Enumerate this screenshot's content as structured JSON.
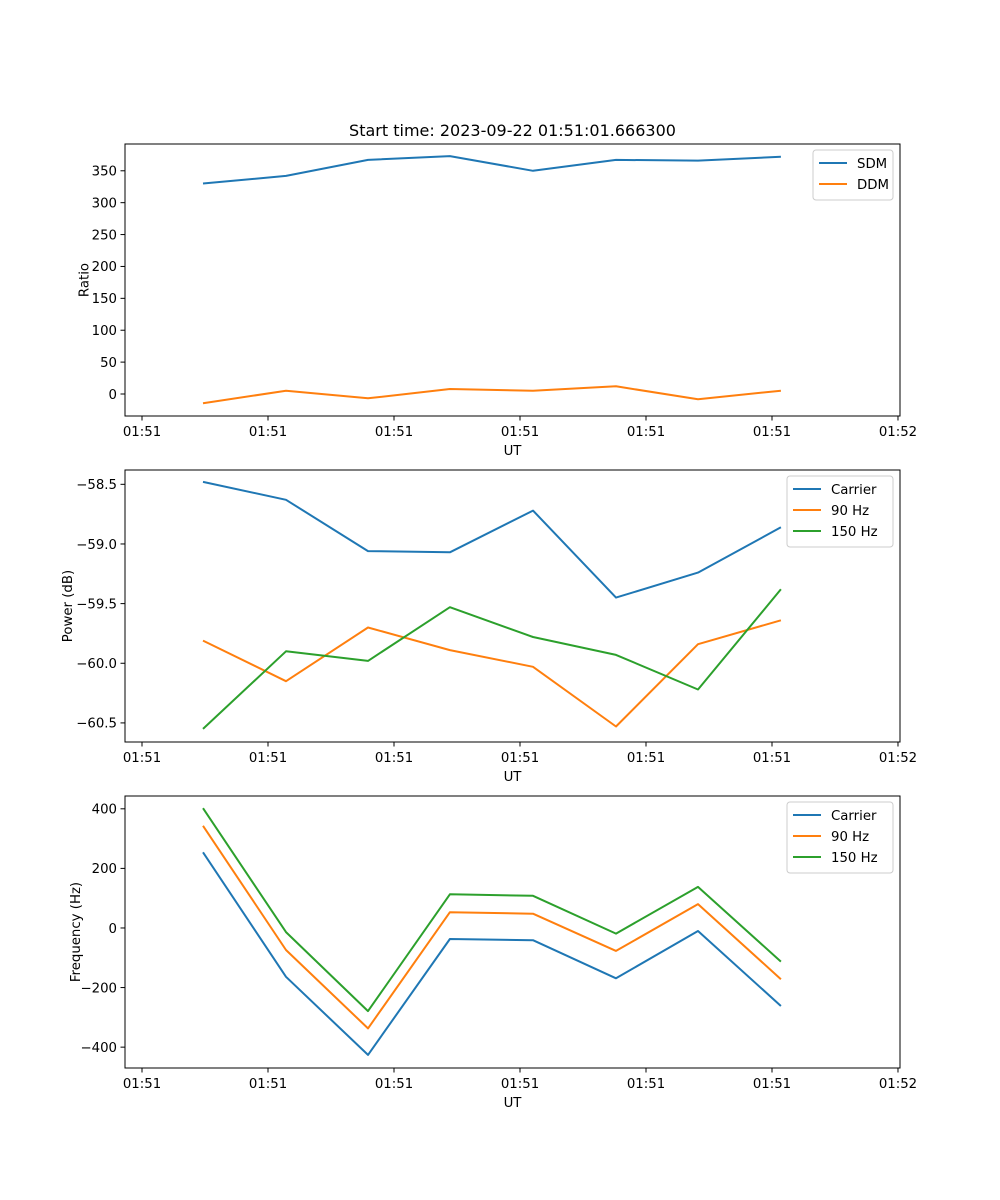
{
  "figure_title": "Start time: 2023-09-22 01:51:01.666300",
  "chart_data": [
    {
      "type": "line",
      "title": "Start time: 2023-09-22 01:51:01.666300",
      "xlabel": "UT",
      "ylabel": "Ratio",
      "x": [
        0.484,
        1.143,
        1.794,
        2.444,
        3.103,
        3.762,
        4.413,
        5.071
      ],
      "xlim": [
        -0.135,
        6.016
      ],
      "xticks": [
        0,
        1,
        2,
        3,
        4,
        5,
        6
      ],
      "xtick_labels": [
        "01:51",
        "01:51",
        "01:51",
        "01:51",
        "01:51",
        "01:51",
        "01:52"
      ],
      "ylim": [
        -34.5,
        392
      ],
      "yticks": [
        0,
        50,
        100,
        150,
        200,
        250,
        300,
        350
      ],
      "ytick_labels": [
        "0",
        "50",
        "100",
        "150",
        "200",
        "250",
        "300",
        "350"
      ],
      "legend_position": "upper right",
      "grid": false,
      "series": [
        {
          "name": "SDM",
          "color": "#1f77b4",
          "values": [
            330,
            342,
            367,
            373,
            350,
            367,
            366,
            372
          ]
        },
        {
          "name": "DDM",
          "color": "#ff7f0e",
          "values": [
            -14.6,
            5.2,
            -6.8,
            7.8,
            5.2,
            12,
            -8.3,
            5.2
          ]
        }
      ]
    },
    {
      "type": "line",
      "title": "",
      "xlabel": "UT",
      "ylabel": "Power (dB)",
      "x": [
        0.484,
        1.143,
        1.794,
        2.444,
        3.103,
        3.762,
        4.413,
        5.071
      ],
      "xlim": [
        -0.135,
        6.016
      ],
      "xticks": [
        0,
        1,
        2,
        3,
        4,
        5,
        6
      ],
      "xtick_labels": [
        "01:51",
        "01:51",
        "01:51",
        "01:51",
        "01:51",
        "01:51",
        "01:52"
      ],
      "ylim": [
        -60.66,
        -58.38
      ],
      "yticks": [
        -60.5,
        -60.0,
        -59.5,
        -59.0,
        -58.5
      ],
      "ytick_labels": [
        "−60.5",
        "−60.0",
        "−59.5",
        "−59.0",
        "−58.5"
      ],
      "legend_position": "upper right",
      "grid": false,
      "series": [
        {
          "name": "Carrier",
          "color": "#1f77b4",
          "values": [
            -58.48,
            -58.63,
            -59.06,
            -59.07,
            -58.72,
            -59.45,
            -59.24,
            -58.86
          ]
        },
        {
          "name": "90 Hz",
          "color": "#ff7f0e",
          "values": [
            -59.81,
            -60.15,
            -59.7,
            -59.89,
            -60.03,
            -60.53,
            -59.84,
            -59.64
          ]
        },
        {
          "name": "150 Hz",
          "color": "#2ca02c",
          "values": [
            -60.55,
            -59.9,
            -59.98,
            -59.53,
            -59.78,
            -59.93,
            -60.22,
            -59.38
          ]
        }
      ]
    },
    {
      "type": "line",
      "title": "",
      "xlabel": "UT",
      "ylabel": "Frequency (Hz)",
      "x": [
        0.484,
        1.143,
        1.794,
        2.444,
        3.103,
        3.762,
        4.413,
        5.071
      ],
      "xlim": [
        -0.135,
        6.016
      ],
      "xticks": [
        0,
        1,
        2,
        3,
        4,
        5,
        6
      ],
      "xtick_labels": [
        "01:51",
        "01:51",
        "01:51",
        "01:51",
        "01:51",
        "01:51",
        "01:52"
      ],
      "ylim": [
        -470,
        443
      ],
      "yticks": [
        -400,
        -200,
        0,
        200,
        400
      ],
      "ytick_labels": [
        "−400",
        "−200",
        "0",
        "200",
        "400"
      ],
      "legend_position": "upper right",
      "grid": false,
      "series": [
        {
          "name": "Carrier",
          "color": "#1f77b4",
          "values": [
            254,
            -164,
            -426,
            -37,
            -41,
            -169,
            -10,
            -262
          ]
        },
        {
          "name": "90 Hz",
          "color": "#ff7f0e",
          "values": [
            343,
            -74,
            -337,
            53,
            48,
            -77,
            80,
            -172
          ]
        },
        {
          "name": "150 Hz",
          "color": "#2ca02c",
          "values": [
            402,
            -14,
            -279,
            113,
            108,
            -19,
            138,
            -113
          ]
        }
      ]
    }
  ]
}
